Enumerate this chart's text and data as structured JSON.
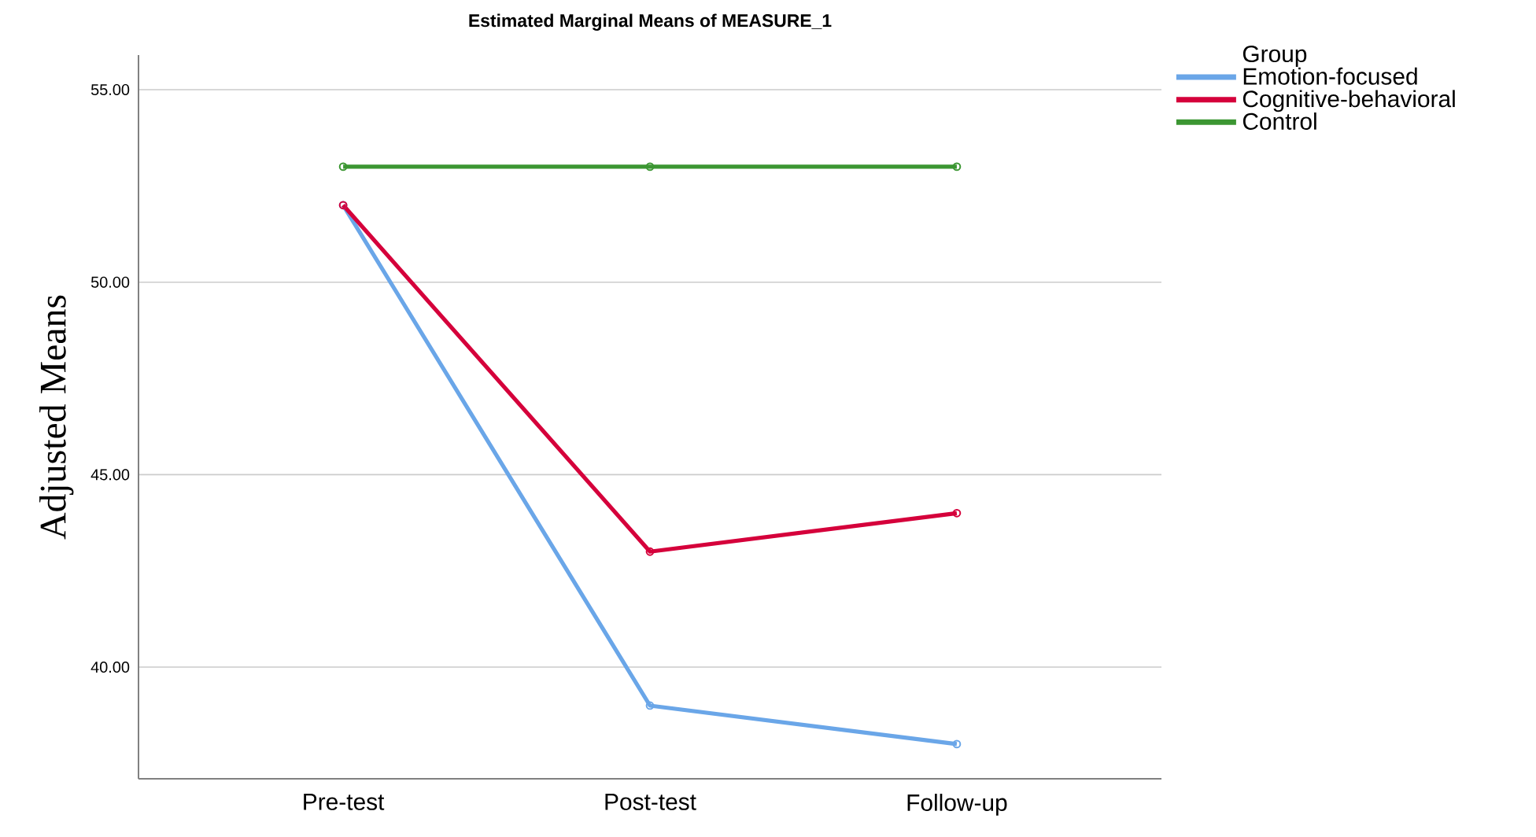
{
  "chart_data": {
    "type": "line",
    "title": "Estimated Marginal Means of MEASURE_1",
    "ylabel": "Adjusted Means",
    "legend_title": "Group",
    "categories": [
      "Pre-test",
      "Post-test",
      "Follow-up"
    ],
    "series": [
      {
        "name": "Emotion-focused",
        "color": "#6aa6e8",
        "values": [
          52,
          39,
          38
        ]
      },
      {
        "name": "Cognitive-behavioral",
        "color": "#d5003b",
        "values": [
          52,
          43,
          44
        ]
      },
      {
        "name": "Control",
        "color": "#3b9632",
        "values": [
          53,
          53,
          53
        ]
      }
    ],
    "ylim": [
      37.1,
      55.9
    ],
    "yticks": [
      {
        "value": 40,
        "label": "40.00"
      },
      {
        "value": 45,
        "label": "45.00"
      },
      {
        "value": 50,
        "label": "50.00"
      },
      {
        "value": 55,
        "label": "55.00"
      }
    ],
    "grid": "y",
    "legend": "right",
    "marker": "circle",
    "line_style": "solid"
  }
}
